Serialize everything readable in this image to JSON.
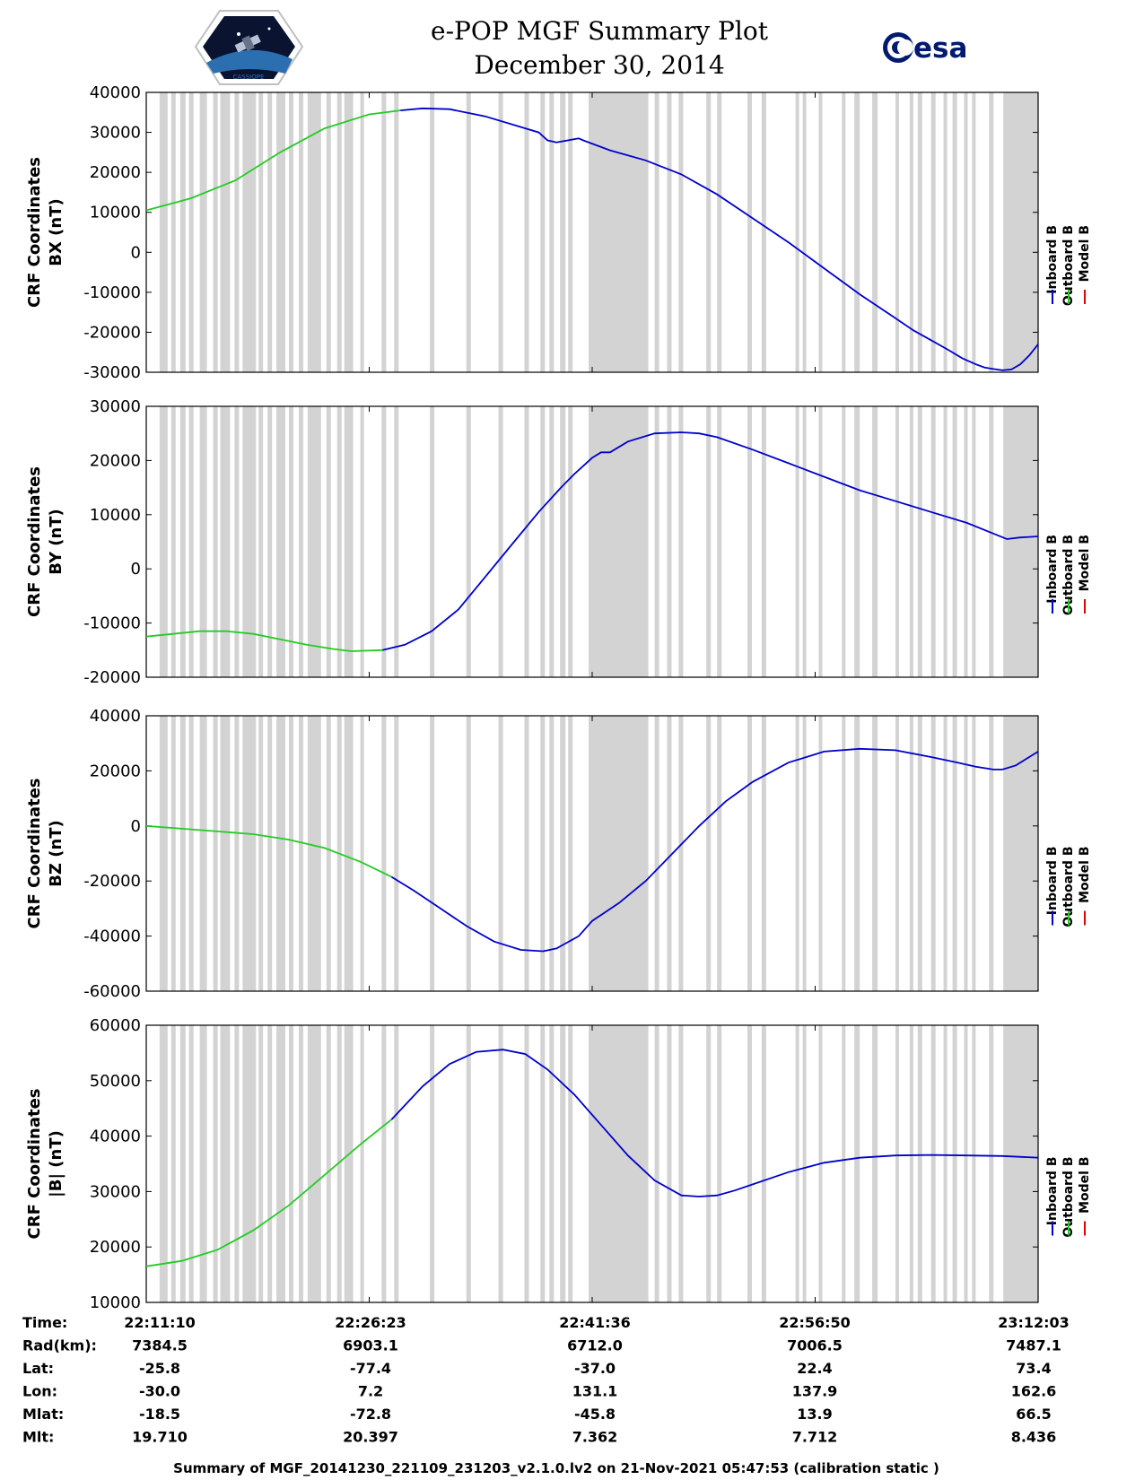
{
  "header": {
    "title_line1": "e-POP MGF Summary Plot",
    "title_line2": "December 30, 2014",
    "logo_left_text": "CASSIOPE",
    "logo_right_text": "esa"
  },
  "legend": [
    "Inboard B",
    "Outboard B",
    "Model B"
  ],
  "colors": {
    "inboard": "#0000cc",
    "outboard": "#22cc22",
    "model": "#e00000",
    "gap": "#d3d3d3"
  },
  "chart_data": [
    {
      "type": "line",
      "ylabel": [
        "CRF Coordinates",
        "BX (nT)"
      ],
      "ylim": [
        -30000,
        40000
      ],
      "yticks": [
        -30000,
        -20000,
        -10000,
        0,
        10000,
        20000,
        30000,
        40000
      ],
      "series": [
        {
          "name": "Outboard B",
          "x": [
            0,
            5,
            10,
            15,
            20,
            25,
            28.5
          ],
          "y": [
            10500,
            13500,
            18000,
            25000,
            31000,
            34500,
            35500
          ]
        },
        {
          "name": "Inboard B",
          "x": [
            28.5,
            31,
            34,
            38,
            44,
            45,
            46,
            48.5,
            49,
            52,
            56,
            60,
            64,
            68,
            72,
            76,
            80,
            84,
            86,
            88,
            90,
            91.5,
            93,
            94,
            95,
            96,
            97,
            98,
            99,
            100
          ],
          "y": [
            35500,
            36000,
            35800,
            34000,
            30000,
            28000,
            27500,
            28500,
            28000,
            25500,
            23000,
            19500,
            14500,
            8500,
            2500,
            -4000,
            -10500,
            -16500,
            -19500,
            -22000,
            -24500,
            -26500,
            -28000,
            -28800,
            -29200,
            -29500,
            -29300,
            -28000,
            -25800,
            -23000
          ]
        }
      ]
    },
    {
      "type": "line",
      "ylabel": [
        "CRF Coordinates",
        "BY (nT)"
      ],
      "ylim": [
        -20000,
        30000
      ],
      "yticks": [
        -20000,
        -10000,
        0,
        10000,
        20000,
        30000
      ],
      "series": [
        {
          "name": "Outboard B",
          "x": [
            0,
            3,
            6,
            9,
            12,
            15,
            18,
            21,
            23,
            26.5
          ],
          "y": [
            -12500,
            -12000,
            -11500,
            -11500,
            -12000,
            -13000,
            -14000,
            -14800,
            -15200,
            -15000
          ]
        },
        {
          "name": "Inboard B",
          "x": [
            26.5,
            29,
            32,
            35,
            38,
            41,
            44,
            46.5,
            48,
            50,
            51,
            52,
            54,
            57,
            60,
            62,
            64,
            68,
            72,
            76,
            80,
            84,
            88,
            92,
            95,
            96.5,
            98,
            100
          ],
          "y": [
            -15000,
            -14000,
            -11500,
            -7500,
            -1500,
            4500,
            10500,
            15000,
            17500,
            20500,
            21500,
            21500,
            23500,
            25000,
            25200,
            25000,
            24300,
            22000,
            19500,
            17000,
            14500,
            12500,
            10500,
            8500,
            6500,
            5500,
            5800,
            6000
          ]
        }
      ]
    },
    {
      "type": "line",
      "ylabel": [
        "CRF Coordinates",
        "BZ (nT)"
      ],
      "ylim": [
        -60000,
        40000
      ],
      "yticks": [
        -60000,
        -40000,
        -20000,
        0,
        20000,
        40000
      ],
      "series": [
        {
          "name": "Outboard B",
          "x": [
            0,
            4,
            8,
            12,
            16,
            20,
            24,
            27.5
          ],
          "y": [
            0,
            -1000,
            -2000,
            -3000,
            -5000,
            -8000,
            -13000,
            -18500
          ]
        },
        {
          "name": "Inboard B",
          "x": [
            27.5,
            30,
            33,
            36,
            39,
            42,
            44.5,
            46,
            48.5,
            50,
            53,
            56,
            59,
            62,
            65,
            68,
            72,
            76,
            80,
            84,
            88,
            91,
            93,
            95,
            96,
            97.5,
            99,
            100
          ],
          "y": [
            -18500,
            -23500,
            -30000,
            -36500,
            -42000,
            -45000,
            -45500,
            -44500,
            -40000,
            -34500,
            -28000,
            -20000,
            -10000,
            0,
            9000,
            16000,
            23000,
            27000,
            28000,
            27500,
            25000,
            23000,
            21500,
            20500,
            20500,
            22000,
            25000,
            27000
          ]
        }
      ]
    },
    {
      "type": "line",
      "ylabel": [
        "CRF Coordinates",
        "|B| (nT)"
      ],
      "ylim": [
        10000,
        60000
      ],
      "yticks": [
        10000,
        20000,
        30000,
        40000,
        50000,
        60000
      ],
      "series": [
        {
          "name": "Outboard B",
          "x": [
            0,
            4,
            8,
            12,
            16,
            20,
            24,
            27.5
          ],
          "y": [
            16500,
            17500,
            19500,
            23000,
            27500,
            33000,
            38500,
            43000
          ]
        },
        {
          "name": "Inboard B",
          "x": [
            27.5,
            31,
            34,
            37,
            40,
            42.5,
            45,
            48,
            51,
            54,
            57,
            60,
            62,
            64,
            66,
            68,
            72,
            76,
            80,
            84,
            88,
            92,
            96,
            100
          ],
          "y": [
            43000,
            49000,
            53000,
            55200,
            55600,
            54800,
            52000,
            47500,
            42000,
            36500,
            32000,
            29300,
            29100,
            29300,
            30200,
            31300,
            33500,
            35200,
            36100,
            36500,
            36600,
            36500,
            36400,
            36100
          ]
        }
      ]
    }
  ],
  "info_table": {
    "row_labels": [
      "Time:",
      "Rad(km):",
      "Lat:",
      "Lon:",
      "Mlat:",
      "Mlt:"
    ],
    "columns": [
      [
        "22:11:10",
        "7384.5",
        "-25.8",
        "-30.0",
        "-18.5",
        "19.710"
      ],
      [
        "22:26:23",
        "6903.1",
        "-77.4",
        "7.2",
        "-72.8",
        "20.397"
      ],
      [
        "22:41:36",
        "6712.0",
        "-37.0",
        "131.1",
        "-45.8",
        "7.362"
      ],
      [
        "22:56:50",
        "7006.5",
        "22.4",
        "137.9",
        "13.9",
        "7.712"
      ],
      [
        "23:12:03",
        "7487.1",
        "73.4",
        "162.6",
        "66.5",
        "8.436"
      ]
    ]
  },
  "footer": "Summary of MGF_20141230_221109_231203_v2.1.0.lv2 on 21-Nov-2021 05:47:53 (calibration static )"
}
